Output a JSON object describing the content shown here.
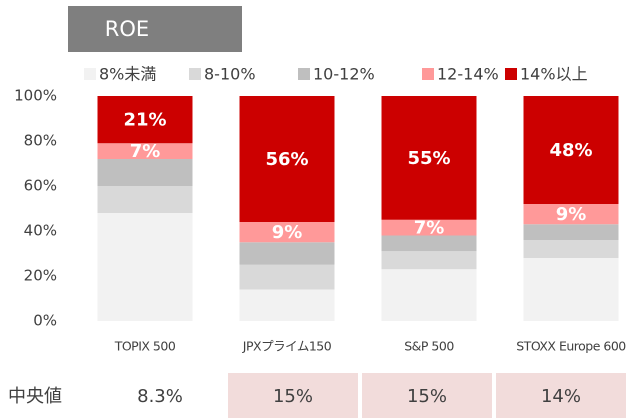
{
  "chart_data": {
    "type": "stacked_bar",
    "title": "ROE",
    "categories": [
      "TOPIX 500",
      "JPXプライム150",
      "S&P 500",
      "STOXX Europe 600"
    ],
    "series": [
      {
        "name": "8%未満",
        "color": "#f2f2f2",
        "values": [
          48,
          14,
          23,
          28
        ]
      },
      {
        "name": "8-10%",
        "color": "#d9d9d9",
        "values": [
          12,
          11,
          8,
          8
        ]
      },
      {
        "name": "10-12%",
        "color": "#bfbfbf",
        "values": [
          12,
          10,
          7,
          7
        ]
      },
      {
        "name": "12-14%",
        "color": "#ff9999",
        "values": [
          7,
          9,
          7,
          9
        ],
        "value_labels": [
          "7%",
          "9%",
          "7%",
          "9%"
        ]
      },
      {
        "name": "14%以上",
        "color": "#cc0000",
        "values": [
          21,
          56,
          55,
          48
        ],
        "value_labels": [
          "21%",
          "56%",
          "55%",
          "48%"
        ]
      }
    ],
    "ylim": [
      0,
      100
    ],
    "yticks": [
      {
        "value": 0,
        "label": "0%"
      },
      {
        "value": 20,
        "label": "20%"
      },
      {
        "value": 40,
        "label": "40%"
      },
      {
        "value": 60,
        "label": "60%"
      },
      {
        "value": 80,
        "label": "80%"
      },
      {
        "value": 100,
        "label": "100%"
      }
    ],
    "median": {
      "label": "中央値",
      "values": [
        "8.3%",
        "15%",
        "15%",
        "14%"
      ]
    }
  }
}
